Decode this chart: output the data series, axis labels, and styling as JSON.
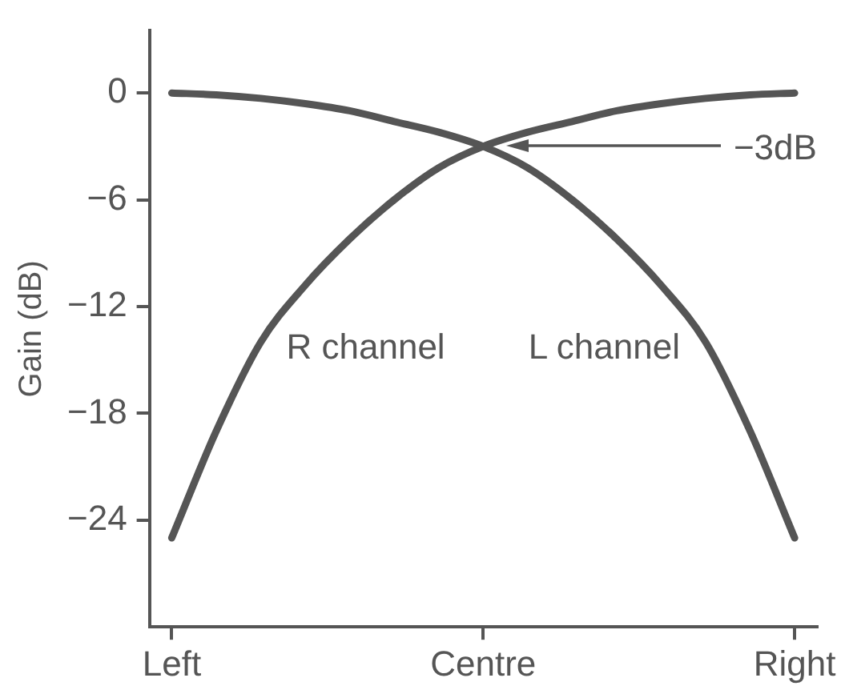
{
  "chart_data": {
    "type": "line",
    "ylabel": "Gain (dB)",
    "categories": [
      "Left",
      null,
      null,
      null,
      null,
      null,
      null,
      "Centre",
      null,
      null,
      null,
      null,
      null,
      null,
      "Right"
    ],
    "ylim": [
      -30,
      3.5
    ],
    "yticks": [
      0,
      -6,
      -12,
      -18,
      -24
    ],
    "grid": false,
    "legend": false,
    "marker": "none",
    "line_style": "solid",
    "series": [
      {
        "name": "L channel",
        "color": "#555555",
        "values": [
          0,
          -0.1,
          -0.3,
          -0.6,
          -1,
          -1.6,
          -2.2,
          -3,
          -4.2,
          -6,
          -8.2,
          -10.8,
          -14,
          -19,
          -25
        ]
      },
      {
        "name": "R channel",
        "color": "#555555",
        "values": [
          -25,
          -19,
          -14,
          -10.8,
          -8.2,
          -6,
          -4.2,
          -3,
          -2.2,
          -1.6,
          -1,
          -0.6,
          -0.3,
          -0.1,
          0
        ]
      }
    ],
    "annotations": [
      "−3dB"
    ]
  }
}
